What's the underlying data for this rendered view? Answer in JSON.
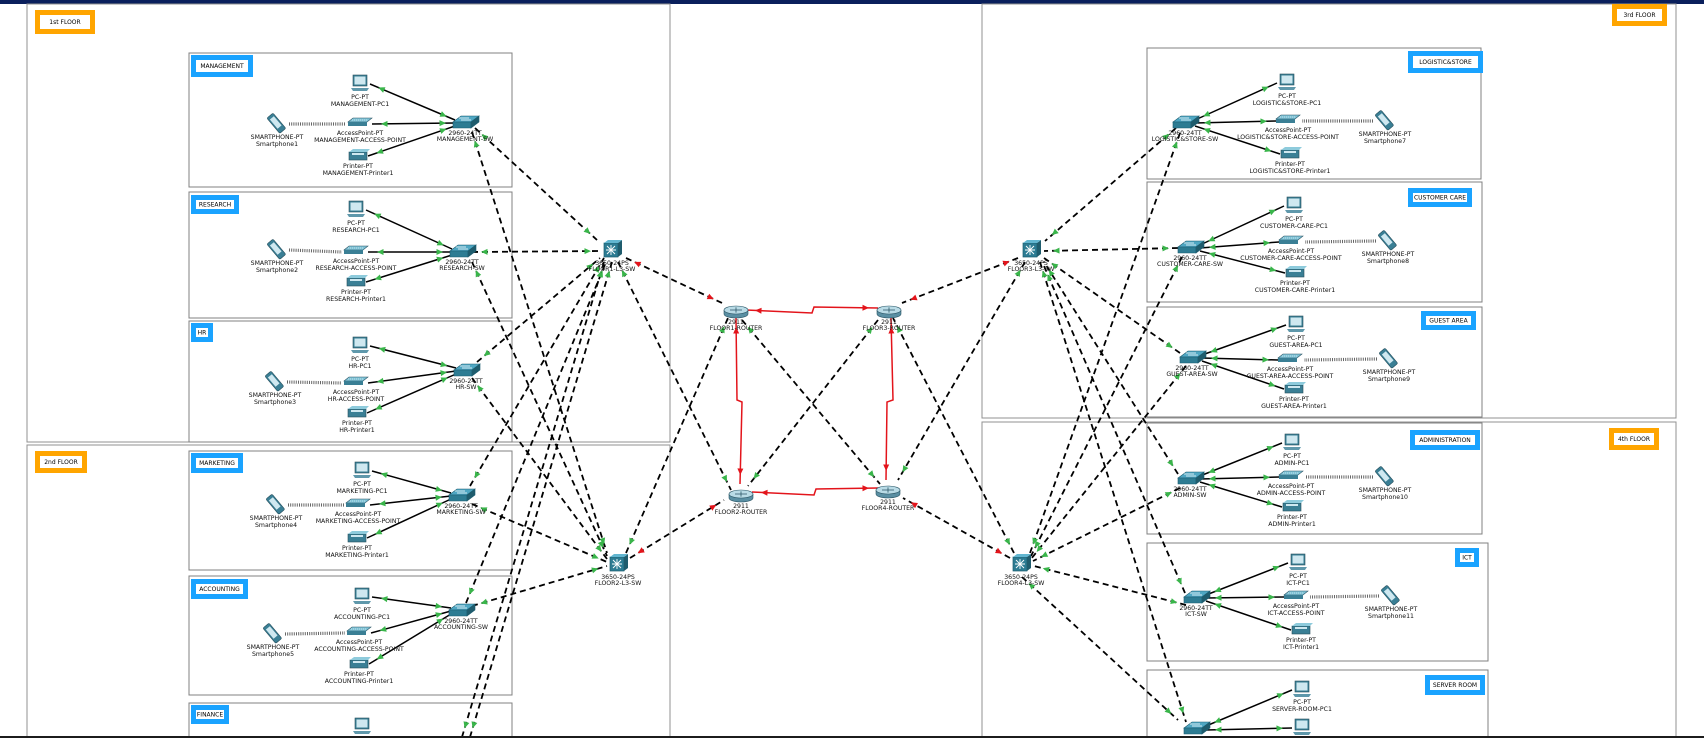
{
  "floors": [
    {
      "key": "f1",
      "label": "1st FLOOR"
    },
    {
      "key": "f2",
      "label": "2nd FLOOR"
    },
    {
      "key": "f3",
      "label": "3rd FLOOR"
    },
    {
      "key": "f4",
      "label": "4th FLOOR"
    }
  ],
  "departments": [
    {
      "key": "mgmt",
      "label": "MANAGEMENT",
      "sw": [
        "2960-24TT",
        "MANAGEMENT-SW"
      ],
      "pc": "MANAGEMENT-PC1",
      "ap": "MANAGEMENT-ACCESS-POINT",
      "pr": "MANAGEMENT-Printer1",
      "sp": "Smartphone1"
    },
    {
      "key": "research",
      "label": "RESEARCH",
      "sw": [
        "2960-24TT",
        "RESEARCH-SW"
      ],
      "pc": "RESEARCH-PC1",
      "ap": "RESEARCH-ACCESS-POINT",
      "pr": "RESEARCH-Printer1",
      "sp": "Smartphone2"
    },
    {
      "key": "hr",
      "label": "HR",
      "sw": [
        "2960-24TT",
        "HR-SW"
      ],
      "pc": "HR-PC1",
      "ap": "HR-ACCESS-POINT",
      "pr": "HR-Printer1",
      "sp": "Smartphone3"
    },
    {
      "key": "marketing",
      "label": "MARKETING",
      "sw": [
        "2960-24TT",
        "MARKETING-SW"
      ],
      "pc": "MARKETING-PC1",
      "ap": "MARKETING-ACCESS-POINT",
      "pr": "MARKETING-Printer1",
      "sp": "Smartphone4"
    },
    {
      "key": "accounting",
      "label": "ACCOUNTING",
      "sw": [
        "2960-24TT",
        "ACCOUNTING-SW"
      ],
      "pc": "ACCOUNTING-PC1",
      "ap": "ACCOUNTING-ACCESS-POINT",
      "pr": "ACCOUNTING-Printer1",
      "sp": "Smartphone5"
    },
    {
      "key": "finance",
      "label": "FINANCE",
      "sw": null,
      "pc": null,
      "ap": null,
      "pr": null,
      "sp": null
    },
    {
      "key": "logistics",
      "label": "LOGISTIC&STORE",
      "sw": [
        "2960-24TT",
        "LOGISTIC&STORE-SW"
      ],
      "pc": "LOGISTIC&STORE-PC1",
      "ap": "LOGISTIC&STORE-ACCESS-POINT",
      "pr": "LOGISTIC&STORE-Printer1",
      "sp": "Smartphone7"
    },
    {
      "key": "customer",
      "label": "CUSTOMER CARE",
      "sw": [
        "2960-24TT",
        "CUSTOMER-CARE-SW"
      ],
      "pc": "CUSTOMER-CARE-PC1",
      "ap": "CUSTOMER-CARE-ACCESS-POINT",
      "pr": "CUSTOMER-CARE-Printer1",
      "sp": "Smartphone8"
    },
    {
      "key": "guest",
      "label": "GUEST AREA",
      "sw": [
        "2960-24TT",
        "GUEST-AREA-SW"
      ],
      "pc": "GUEST-AREA-PC1",
      "ap": "GUEST-AREA-ACCESS-POINT",
      "pr": "GUEST-AREA-Printer1",
      "sp": "Smartphone9"
    },
    {
      "key": "admin",
      "label": "ADMINISTRATION",
      "sw": [
        "2960-24TT",
        "ADMIN-SW"
      ],
      "pc": "ADMIN-PC1",
      "ap": "ADMIN-ACCESS-POINT",
      "pr": "ADMIN-Printer1",
      "sp": "Smartphone10"
    },
    {
      "key": "ict",
      "label": "ICT",
      "sw": [
        "2960-24TT",
        "ICT-SW"
      ],
      "pc": "ICT-PC1",
      "ap": "ICT-ACCESS-POINT",
      "pr": "ICT-Printer1",
      "sp": "Smartphone11"
    },
    {
      "key": "server",
      "label": "SERVER ROOM",
      "sw": null,
      "pc": "SERVER-ROOM-PC1",
      "ap": null,
      "pr": null,
      "sp": null
    }
  ],
  "device_types": {
    "pc": "PC-PT",
    "ap": "AccessPoint-PT",
    "printer": "Printer-PT",
    "phone": "SMARTPHONE-PT"
  },
  "core": [
    {
      "key": "l3_1",
      "model": "3650-24PS",
      "name": "FLOOR1-L3-SW"
    },
    {
      "key": "l3_2",
      "model": "3650-24PS",
      "name": "FLOOR2-L3-SW"
    },
    {
      "key": "l3_3",
      "model": "3650-24PS",
      "name": "FLOOR3-L3-SW"
    },
    {
      "key": "l3_4",
      "model": "3650-24PS",
      "name": "FLOOR4-L3-SW"
    },
    {
      "key": "r1",
      "model": "2911",
      "name": "FLOOR1-ROUTER"
    },
    {
      "key": "r2",
      "model": "2911",
      "name": "FLOOR2-ROUTER"
    },
    {
      "key": "r3",
      "model": "2911",
      "name": "FLOOR3-ROUTER"
    },
    {
      "key": "r4",
      "model": "2911",
      "name": "FLOOR4-ROUTER"
    }
  ],
  "colors": {
    "label_blue": "#1aa3ff",
    "floor_orange": "#ffa500",
    "router_link": "#e3141b",
    "up_indicator": "#39b54a",
    "down_indicator": "#e3141b",
    "device_teal": "#2d7c93",
    "top_bar": "#0a1f5c"
  }
}
